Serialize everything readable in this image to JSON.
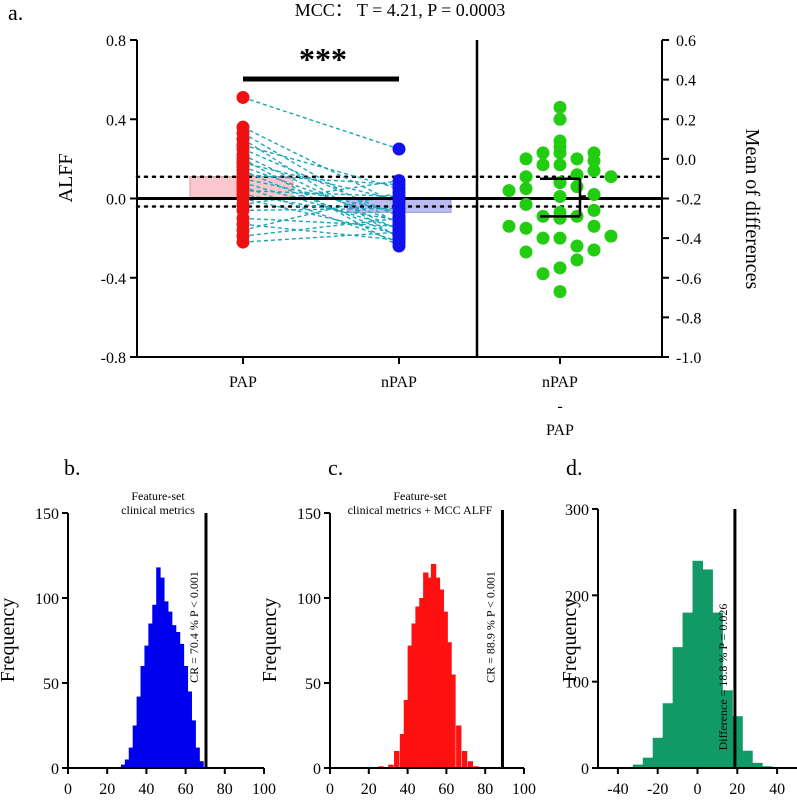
{
  "colors": {
    "pap": "#ee1111",
    "npap": "#1111ee",
    "diff": "#22cc11",
    "pap_bar": "#f8c8cc",
    "npap_bar": "#bcbcf4",
    "pair_line": "#1aa6b8",
    "hist_b": "#0000ee",
    "hist_c": "#ff1111",
    "hist_d": "#119966"
  },
  "chart_data": [
    {
      "panel": "a.",
      "type": "scatter",
      "title": "MCC：  T = 4.21, P = 0.0003",
      "ylabel": "ALFF",
      "ylabel_right": "Mean of differences",
      "ylim": [
        -0.8,
        0.8
      ],
      "ylim_right": [
        -1.0,
        0.6
      ],
      "yticks": [
        "-0.8",
        "-0.4",
        "0.0",
        "0.4",
        "0.8"
      ],
      "yticks_right": [
        "-1.0",
        "-0.8",
        "-0.6",
        "-0.4",
        "-0.2",
        "0.0",
        "0.2",
        "0.4",
        "0.6"
      ],
      "categories": [
        "PAP",
        "nPAP",
        "nPAP\n-\nPAP"
      ],
      "significance": "***",
      "pap": [
        0.51,
        0.36,
        0.33,
        0.3,
        0.27,
        0.25,
        0.22,
        0.2,
        0.18,
        0.16,
        0.14,
        0.12,
        0.1,
        0.08,
        0.06,
        0.04,
        0.02,
        0.0,
        -0.03,
        -0.06,
        -0.1,
        -0.13,
        -0.16,
        -0.19,
        -0.22
      ],
      "npap": [
        0.25,
        0.09,
        0.07,
        0.05,
        0.03,
        0.01,
        -0.01,
        -0.03,
        -0.05,
        -0.07,
        -0.09,
        -0.1,
        -0.11,
        -0.12,
        -0.13,
        -0.14,
        -0.15,
        -0.16,
        -0.17,
        -0.18,
        -0.19,
        -0.2,
        -0.21,
        -0.22,
        -0.24
      ],
      "bar_means": [
        0.11,
        -0.07
      ],
      "mean_difference": -0.19,
      "ci": [
        -0.29,
        -0.1
      ],
      "differences": [
        [
          0,
          0.26
        ],
        [
          0,
          0.2
        ],
        [
          0,
          0.06
        ],
        [
          0,
          0.03
        ],
        [
          -1,
          0.03
        ],
        [
          -1,
          -0.03
        ],
        [
          -2,
          0.0
        ],
        [
          -2,
          -0.09
        ],
        [
          -2,
          -0.15
        ],
        [
          -2,
          -0.23
        ],
        [
          -2,
          -0.35
        ],
        [
          -2,
          -0.47
        ],
        [
          1,
          0.0
        ],
        [
          1,
          -0.08
        ],
        [
          1,
          -0.14
        ],
        [
          1,
          -0.29
        ],
        [
          1,
          -0.44
        ],
        [
          0,
          -0.03
        ],
        [
          0,
          -0.12
        ],
        [
          0,
          -0.19
        ],
        [
          0,
          -0.27
        ],
        [
          0,
          -0.3
        ],
        [
          0,
          -0.4
        ],
        [
          0,
          -0.55
        ],
        [
          0,
          -0.67
        ],
        [
          2,
          0.03
        ],
        [
          2,
          -0.01
        ],
        [
          2,
          -0.06
        ],
        [
          2,
          -0.18
        ],
        [
          2,
          -0.26
        ],
        [
          2,
          -0.34
        ],
        [
          2,
          -0.46
        ],
        [
          -1,
          -0.29
        ],
        [
          -1,
          -0.4
        ],
        [
          -1,
          -0.58
        ],
        [
          1,
          -0.51
        ],
        [
          3,
          -0.09
        ],
        [
          -3,
          -0.16
        ],
        [
          -3,
          -0.34
        ],
        [
          3,
          -0.39
        ],
        [
          0,
          0.09
        ]
      ]
    },
    {
      "panel": "b.",
      "type": "bar",
      "ylabel": "Frequency",
      "ylim": [
        0,
        150
      ],
      "yticks": [
        "0",
        "50",
        "100",
        "150"
      ],
      "xlim": [
        0,
        100
      ],
      "xticks": [
        "0",
        "20",
        "40",
        "60",
        "80",
        "100"
      ],
      "annotation": "Feature-set\nclinical metrics",
      "vline": 70.4,
      "vline_label": "CR = 70.4 %  P < 0.001",
      "bin_starts": [
        27,
        29,
        31,
        33,
        35,
        37,
        39,
        41,
        43,
        45,
        47,
        49,
        51,
        53,
        55,
        57,
        59,
        61,
        63,
        65,
        67
      ],
      "bin_width": 2,
      "values": [
        2,
        5,
        12,
        25,
        42,
        60,
        72,
        85,
        96,
        118,
        112,
        98,
        92,
        84,
        80,
        73,
        60,
        45,
        28,
        12,
        4
      ]
    },
    {
      "panel": "c.",
      "type": "bar",
      "ylabel": "Frequency",
      "ylim": [
        0,
        150
      ],
      "yticks": [
        "0",
        "50",
        "100",
        "150"
      ],
      "xlim": [
        0,
        100
      ],
      "xticks": [
        "0",
        "20",
        "40",
        "60",
        "80",
        "100"
      ],
      "annotation": "Feature-set\nclinical metrics + MCC ALFF",
      "vline": 88.9,
      "vline_label": "CR = 88.9 %  P < 0.001",
      "bin_starts": [
        25,
        30,
        33,
        36,
        38,
        40,
        42,
        44,
        46,
        48,
        50,
        52,
        54,
        56,
        58,
        60,
        62,
        65,
        68,
        71,
        74
      ],
      "bin_width": 2.5,
      "values": [
        1,
        2,
        10,
        20,
        40,
        72,
        85,
        95,
        100,
        115,
        112,
        120,
        112,
        105,
        92,
        74,
        55,
        25,
        10,
        4,
        1
      ]
    },
    {
      "panel": "d.",
      "type": "bar",
      "ylabel": "Frequency",
      "ylim": [
        0,
        300
      ],
      "yticks": [
        "0",
        "100",
        "200",
        "300"
      ],
      "xlim": [
        -50,
        50
      ],
      "xticks": [
        "-40",
        "-20",
        "0",
        "20",
        "40"
      ],
      "vline": 18.8,
      "vline_label": "Difference = 18.8 %  P = 0.026",
      "bin_starts": [
        -37.5,
        -32.5,
        -27.5,
        -22.5,
        -17.5,
        -12.5,
        -7.5,
        -2.5,
        2.5,
        7.5,
        12.5,
        17.5,
        22.5,
        27.5,
        32.5,
        37.5
      ],
      "bin_width": 5,
      "values": [
        1,
        4,
        12,
        35,
        75,
        140,
        180,
        240,
        230,
        180,
        90,
        60,
        20,
        6,
        2,
        1
      ]
    }
  ]
}
